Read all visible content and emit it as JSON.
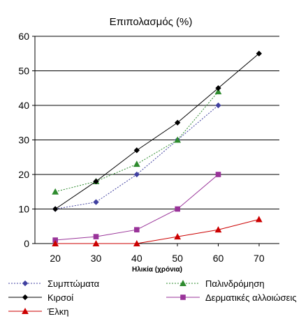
{
  "chart_data": {
    "type": "line",
    "title": "Επιπολασμός (%)",
    "xlabel": "Ηλικία (χρόνια)",
    "ylabel": "",
    "xlim": [
      15,
      75
    ],
    "ylim": [
      0,
      60
    ],
    "x_ticks": [
      20,
      30,
      40,
      50,
      60,
      70
    ],
    "y_ticks": [
      0,
      10,
      20,
      30,
      40,
      50,
      60
    ],
    "grid": true,
    "legend_position": "bottom",
    "series": [
      {
        "name": "Συμπτώματα",
        "color": "#4040a0",
        "line_style": "dotted",
        "marker": "diamond",
        "x": [
          20,
          30,
          40,
          50,
          60
        ],
        "y": [
          10,
          12,
          20,
          30,
          40
        ]
      },
      {
        "name": "Παλινδρόμηση",
        "color": "#2e8b2e",
        "line_style": "dotted",
        "marker": "triangle",
        "x": [
          20,
          30,
          40,
          50,
          60
        ],
        "y": [
          15,
          18,
          23,
          30,
          44
        ]
      },
      {
        "name": "Κιρσοί",
        "color": "#000000",
        "line_style": "solid",
        "marker": "diamond",
        "x": [
          20,
          30,
          40,
          50,
          60,
          70
        ],
        "y": [
          10,
          18,
          27,
          35,
          45,
          55
        ]
      },
      {
        "name": "Δερματικές αλλοιώσεις",
        "color": "#993399",
        "line_style": "solid",
        "marker": "square",
        "x": [
          20,
          30,
          40,
          50,
          60
        ],
        "y": [
          1,
          2,
          4,
          10,
          20
        ]
      },
      {
        "name": "Έλκη",
        "color": "#cc0000",
        "line_style": "solid",
        "marker": "triangle",
        "x": [
          20,
          30,
          40,
          50,
          60,
          70
        ],
        "y": [
          0,
          0,
          0,
          2,
          4,
          7
        ]
      }
    ]
  }
}
